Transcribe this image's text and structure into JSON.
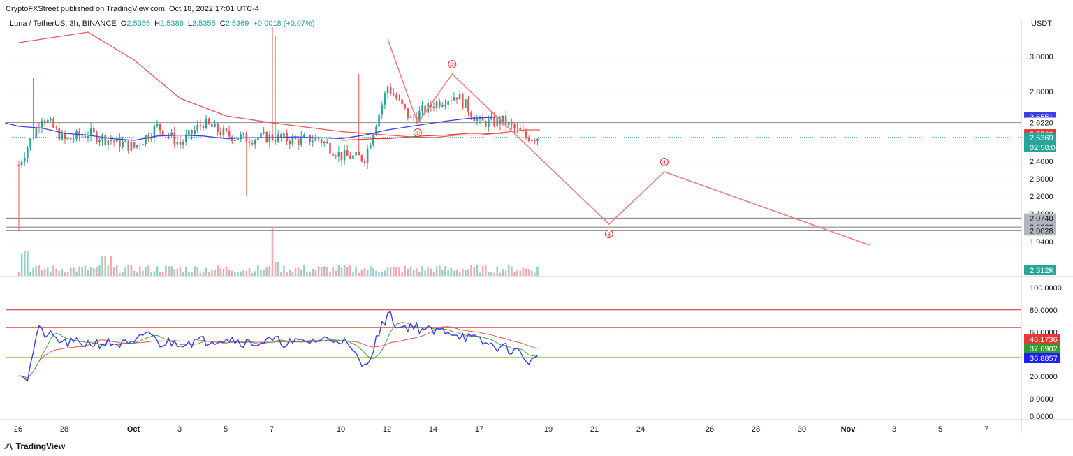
{
  "header": {
    "published": "CryptoFXStreet published on TradingView.com, Oct 18, 2022 17:01 UTC-4"
  },
  "symbol": {
    "title": "Luna / TetherUS, 3h, BINANCE",
    "o_label": "O",
    "o": "2.5355",
    "h_label": "H",
    "h": "2.5386",
    "l_label": "L",
    "l": "2.5355",
    "c_label": "C",
    "c": "2.5369",
    "change": "+0.0018 (+0.07%)"
  },
  "currency": "USDT",
  "footer": {
    "brand": "TradingView"
  },
  "colors": {
    "up": "#26a69a",
    "down": "#ef5350",
    "ma_red": "#f05454",
    "ma_blue": "#3d3de6",
    "wave": "#f08080",
    "rsi": "#3d3de6"
  },
  "chart_data": [
    {
      "type": "candlestick",
      "title": "Luna / TetherUS, 3h, BINANCE",
      "ylim": [
        1.92,
        3.2
      ],
      "y_ticks": [
        "3.0000",
        "2.8000",
        "2.4000",
        "2.3000",
        "2.2000",
        "2.1000",
        "1.9400"
      ],
      "x_ticks": [
        "26",
        "28",
        "Oct",
        "3",
        "5",
        "7",
        "10",
        "12",
        "14",
        "17",
        "19",
        "21",
        "24",
        "26",
        "28",
        "30",
        "Nov",
        "3",
        "5",
        "7"
      ],
      "price_labels": [
        {
          "value": "2.6551",
          "color": "#3d3de6",
          "text_color": "#ffffff"
        },
        {
          "value": "2.6220",
          "color": "#ffffff",
          "text_color": "#131722"
        },
        {
          "value": "2.5560",
          "color": "#e53935",
          "text_color": "#ffffff"
        },
        {
          "value": "2.5369",
          "color": "#26a69a",
          "text_color": "#ffffff"
        },
        {
          "value": "02:58:06",
          "color": "#26a69a",
          "text_color": "#ffffff"
        },
        {
          "value": "2.0740",
          "color": "#b2b5be",
          "text_color": "#131722"
        },
        {
          "value": "2.0233",
          "color": "#b2b5be",
          "text_color": "#131722"
        },
        {
          "value": "2.0028",
          "color": "#b2b5be",
          "text_color": "#131722"
        },
        {
          "value": "2.312K",
          "color": "#26a69a",
          "text_color": "#ffffff"
        }
      ],
      "horizontal_levels": [
        2.622,
        2.074,
        2.0233,
        2.0028
      ],
      "wave_points": [
        {
          "x": "12",
          "y": 3.1,
          "label": ""
        },
        {
          "x": "13.3",
          "y": 2.62,
          "label": "①"
        },
        {
          "x": "14.8",
          "y": 2.9,
          "label": "②"
        },
        {
          "x": "21.6",
          "y": 2.04,
          "label": "③"
        },
        {
          "x": "24",
          "y": 2.34,
          "label": "④"
        },
        {
          "x": "Nov 1",
          "y": 1.92,
          "label": ""
        }
      ],
      "price_path": [
        {
          "x": "26",
          "y": 2.38
        },
        {
          "x": "27",
          "y": 2.66
        },
        {
          "x": "28",
          "y": 2.52
        },
        {
          "x": "29",
          "y": 2.56
        },
        {
          "x": "30",
          "y": 2.52
        },
        {
          "x": "Oct",
          "y": 2.48
        },
        {
          "x": "2",
          "y": 2.6
        },
        {
          "x": "3",
          "y": 2.5
        },
        {
          "x": "4",
          "y": 2.62
        },
        {
          "x": "5",
          "y": 2.55
        },
        {
          "x": "6",
          "y": 2.53
        },
        {
          "x": "7",
          "y": 2.54
        },
        {
          "x": "8",
          "y": 2.52
        },
        {
          "x": "9",
          "y": 2.53
        },
        {
          "x": "10",
          "y": 2.43
        },
        {
          "x": "11",
          "y": 2.42
        },
        {
          "x": "12",
          "y": 2.83
        },
        {
          "x": "13",
          "y": 2.64
        },
        {
          "x": "14",
          "y": 2.73
        },
        {
          "x": "15",
          "y": 2.78
        },
        {
          "x": "16",
          "y": 2.62
        },
        {
          "x": "17",
          "y": 2.63
        },
        {
          "x": "18",
          "y": 2.54
        }
      ],
      "volume_label": "2.312K"
    },
    {
      "type": "line",
      "title": "",
      "ylim": [
        0,
        100
      ],
      "y_ticks": [
        "100.0000",
        "80.0000",
        "60.0000",
        "20.0000",
        "0.0000",
        "0.0000"
      ],
      "levels": [
        80,
        64.5,
        37.5,
        33
      ],
      "series": [
        {
          "values_label": "46.1736",
          "color": "#e53935"
        },
        {
          "values_label": "37.6902",
          "color": "#2e9d2e"
        },
        {
          "values_label": "36.8857",
          "color": "#1f1ff0"
        }
      ]
    }
  ]
}
